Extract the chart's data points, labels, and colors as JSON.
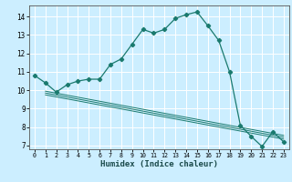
{
  "title": "",
  "xlabel": "Humidex (Indice chaleur)",
  "bg_color": "#cceeff",
  "grid_color": "#ffffff",
  "line_color": "#1a7a6e",
  "xlim": [
    -0.5,
    23.5
  ],
  "ylim": [
    6.8,
    14.6
  ],
  "xticks": [
    0,
    1,
    2,
    3,
    4,
    5,
    6,
    7,
    8,
    9,
    10,
    11,
    12,
    13,
    14,
    15,
    16,
    17,
    18,
    19,
    20,
    21,
    22,
    23
  ],
  "yticks": [
    7,
    8,
    9,
    10,
    11,
    12,
    13,
    14
  ],
  "curve1_x": [
    0,
    1,
    2,
    3,
    4,
    5,
    6,
    7,
    8,
    9,
    10,
    11,
    12,
    13,
    14,
    15,
    16,
    17,
    18,
    19,
    20,
    21,
    22,
    23
  ],
  "curve1_y": [
    10.8,
    10.4,
    9.9,
    10.3,
    10.5,
    10.6,
    10.6,
    11.4,
    11.7,
    12.5,
    13.3,
    13.1,
    13.3,
    13.9,
    14.1,
    14.25,
    13.5,
    12.7,
    11.0,
    8.1,
    7.5,
    6.95,
    7.75,
    7.2
  ],
  "curve2_x": [
    1,
    23
  ],
  "curve2_y": [
    9.95,
    7.55
  ],
  "curve3_x": [
    1,
    23
  ],
  "curve3_y": [
    9.85,
    7.45
  ],
  "curve4_x": [
    1,
    23
  ],
  "curve4_y": [
    9.75,
    7.35
  ]
}
